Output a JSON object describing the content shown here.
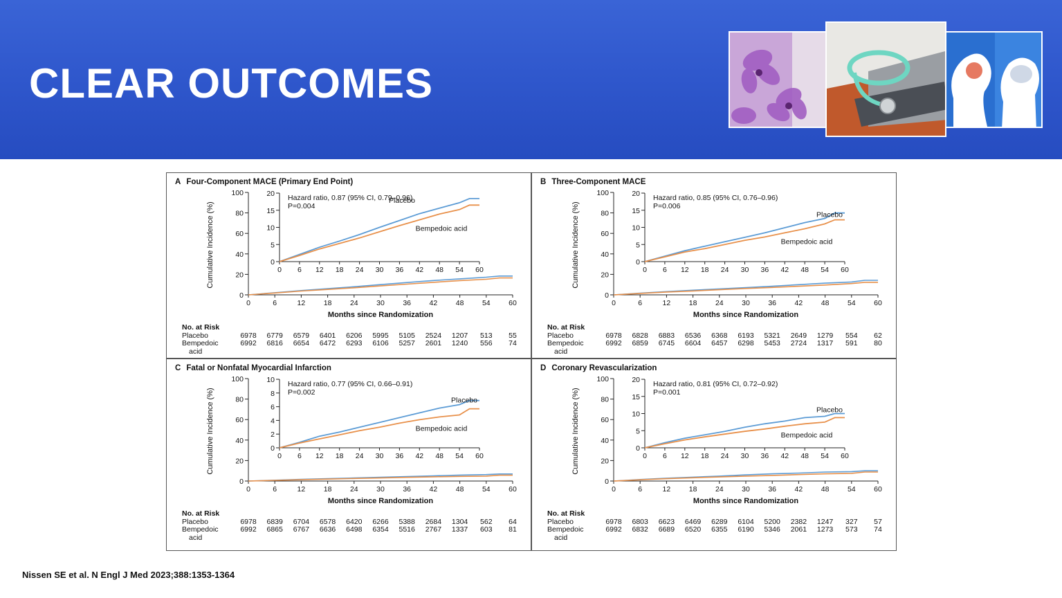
{
  "slide": {
    "title": "CLEAR OUTCOMES",
    "citation": "Nissen SE et al. N Engl J Med 2023;388:1353-1364"
  },
  "images": [
    {
      "name": "purple-flowers-photo"
    },
    {
      "name": "stethoscope-laptop-photo"
    },
    {
      "name": "brain-head-photo"
    }
  ],
  "colors": {
    "banner": "#2f57cc",
    "placebo": "#5b9bd5",
    "bempedoic": "#e8904a"
  },
  "common": {
    "xlabel": "Months since Randomization",
    "ylabel": "Cumulative Incidence (%)",
    "risk_header": "No. at Risk",
    "risk_label_placebo": "Placebo",
    "risk_label_bempedoic": "Bempedoic",
    "risk_label_bempedoic2": "acid",
    "x_ticks": [
      "0",
      "6",
      "12",
      "18",
      "24",
      "30",
      "36",
      "42",
      "48",
      "54",
      "60"
    ],
    "y_ticks": [
      "0",
      "20",
      "40",
      "60",
      "80",
      "100"
    ],
    "risk_months": [
      "0",
      "6",
      "12",
      "18",
      "24",
      "30",
      "36",
      "42",
      "48",
      "54",
      "60"
    ]
  },
  "chart_data": [
    {
      "id": "A",
      "type": "line",
      "title": "Four-Component MACE (Primary End Point)",
      "xlabel": "Months since Randomization",
      "ylabel": "Cumulative Incidence (%)",
      "xlim": [
        0,
        60
      ],
      "ylim": [
        0,
        100
      ],
      "inset": {
        "ylim": [
          0,
          20
        ],
        "y_ticks": [
          "0",
          "5",
          "10",
          "15",
          "20"
        ],
        "annotation_line1": "Hazard ratio, 0.87 (95% CI, 0.79–0.96)",
        "annotation_line2": "P=0.004"
      },
      "series": [
        {
          "name": "Placebo",
          "x": [
            0,
            6,
            12,
            18,
            24,
            30,
            36,
            42,
            48,
            54,
            57,
            60
          ],
          "values": [
            0,
            2.1,
            4.2,
            6.0,
            7.9,
            10.0,
            12.0,
            14.0,
            15.6,
            17.2,
            18.4,
            18.4
          ]
        },
        {
          "name": "Bempedoic acid",
          "x": [
            0,
            6,
            12,
            18,
            24,
            30,
            36,
            42,
            48,
            54,
            57,
            60
          ],
          "values": [
            0,
            1.8,
            3.7,
            5.3,
            6.9,
            8.7,
            10.5,
            12.2,
            13.9,
            15.2,
            16.5,
            16.5
          ]
        }
      ],
      "risk": {
        "placebo": [
          "6978",
          "6779",
          "6579",
          "6401",
          "6206",
          "5995",
          "5105",
          "2524",
          "1207",
          "513",
          "55"
        ],
        "bempedoic": [
          "6992",
          "6816",
          "6654",
          "6472",
          "6293",
          "6106",
          "5257",
          "2601",
          "1240",
          "556",
          "74"
        ]
      }
    },
    {
      "id": "B",
      "type": "line",
      "title": "Three-Component MACE",
      "xlabel": "Months since Randomization",
      "ylabel": "Cumulative Incidence (%)",
      "xlim": [
        0,
        60
      ],
      "ylim": [
        0,
        100
      ],
      "inset": {
        "ylim": [
          0,
          20
        ],
        "y_ticks": [
          "0",
          "5",
          "10",
          "15",
          "20"
        ],
        "annotation_line1": "Hazard ratio, 0.85 (95% CI, 0.76–0.96)",
        "annotation_line2": "P=0.006"
      },
      "series": [
        {
          "name": "Placebo",
          "x": [
            0,
            6,
            12,
            18,
            24,
            30,
            36,
            42,
            48,
            54,
            57,
            60
          ],
          "values": [
            0,
            1.6,
            3.2,
            4.5,
            5.8,
            7.1,
            8.4,
            9.9,
            11.4,
            12.6,
            14.2,
            14.2
          ]
        },
        {
          "name": "Bempedoic acid",
          "x": [
            0,
            6,
            12,
            18,
            24,
            30,
            36,
            42,
            48,
            54,
            57,
            60
          ],
          "values": [
            0,
            1.4,
            2.8,
            3.8,
            5.0,
            6.2,
            7.2,
            8.4,
            9.6,
            11.0,
            12.2,
            12.2
          ]
        }
      ],
      "risk": {
        "placebo": [
          "6978",
          "6828",
          "6883",
          "6536",
          "6368",
          "6193",
          "5321",
          "2649",
          "1279",
          "554",
          "62"
        ],
        "bempedoic": [
          "6992",
          "6859",
          "6745",
          "6604",
          "6457",
          "6298",
          "5453",
          "2724",
          "1317",
          "591",
          "80"
        ]
      }
    },
    {
      "id": "C",
      "type": "line",
      "title": "Fatal or Nonfatal Myocardial Infarction",
      "xlabel": "Months since Randomization",
      "ylabel": "Cumulative Incidence (%)",
      "xlim": [
        0,
        60
      ],
      "ylim": [
        0,
        100
      ],
      "inset": {
        "ylim": [
          0,
          10
        ],
        "y_ticks": [
          "0",
          "2",
          "4",
          "6",
          "8",
          "10"
        ],
        "annotation_line1": "Hazard ratio, 0.77 (95% CI, 0.66–0.91)",
        "annotation_line2": "P=0.002"
      },
      "series": [
        {
          "name": "Placebo",
          "x": [
            0,
            6,
            12,
            18,
            24,
            30,
            36,
            42,
            48,
            54,
            57,
            60
          ],
          "values": [
            0,
            0.8,
            1.7,
            2.3,
            3.0,
            3.7,
            4.4,
            5.1,
            5.8,
            6.3,
            6.9,
            6.9
          ]
        },
        {
          "name": "Bempedoic acid",
          "x": [
            0,
            6,
            12,
            18,
            24,
            30,
            36,
            42,
            48,
            54,
            57,
            60
          ],
          "values": [
            0,
            0.7,
            1.3,
            1.9,
            2.5,
            3.0,
            3.6,
            4.1,
            4.5,
            4.8,
            5.7,
            5.7
          ]
        }
      ],
      "risk": {
        "placebo": [
          "6978",
          "6839",
          "6704",
          "6578",
          "6420",
          "6266",
          "5388",
          "2684",
          "1304",
          "562",
          "64"
        ],
        "bempedoic": [
          "6992",
          "6865",
          "6767",
          "6636",
          "6498",
          "6354",
          "5516",
          "2767",
          "1337",
          "603",
          "81"
        ]
      }
    },
    {
      "id": "D",
      "type": "line",
      "title": "Coronary Revascularization",
      "xlabel": "Months since Randomization",
      "ylabel": "Cumulative Incidence (%)",
      "xlim": [
        0,
        60
      ],
      "ylim": [
        0,
        100
      ],
      "inset": {
        "ylim": [
          0,
          20
        ],
        "y_ticks": [
          "0",
          "5",
          "10",
          "15",
          "20"
        ],
        "annotation_line1": "Hazard ratio, 0.81 (95% CI, 0.72–0.92)",
        "annotation_line2": "P=0.001"
      },
      "series": [
        {
          "name": "Placebo",
          "x": [
            0,
            6,
            12,
            18,
            24,
            30,
            36,
            42,
            48,
            54,
            57,
            60
          ],
          "values": [
            0,
            1.5,
            2.8,
            3.8,
            4.8,
            6.0,
            7.0,
            7.8,
            8.8,
            9.2,
            10.0,
            10.0
          ]
        },
        {
          "name": "Bempedoic acid",
          "x": [
            0,
            6,
            12,
            18,
            24,
            30,
            36,
            42,
            48,
            54,
            57,
            60
          ],
          "values": [
            0,
            1.2,
            2.3,
            3.2,
            4.0,
            4.8,
            5.5,
            6.3,
            7.0,
            7.5,
            8.8,
            8.8
          ]
        }
      ],
      "risk": {
        "placebo": [
          "6978",
          "6803",
          "6623",
          "6469",
          "6289",
          "6104",
          "5200",
          "2382",
          "1247",
          "327",
          "57"
        ],
        "bempedoic": [
          "6992",
          "6832",
          "6689",
          "6520",
          "6355",
          "6190",
          "5346",
          "2061",
          "1273",
          "573",
          "74"
        ]
      }
    }
  ]
}
